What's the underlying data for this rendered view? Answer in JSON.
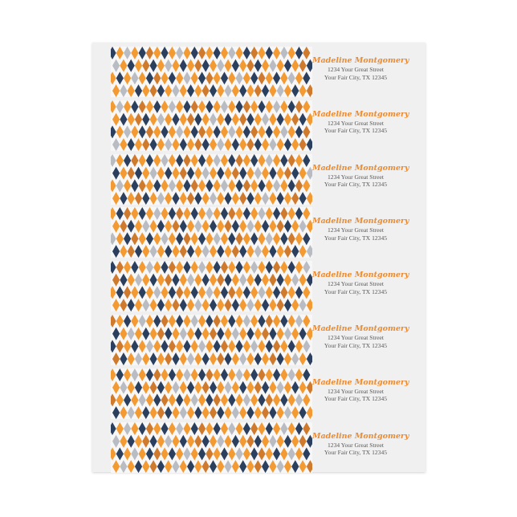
{
  "labels": [
    {
      "name": "Madeline Montgomery",
      "line1": "1234 Your Great Street",
      "line2": "Your Fair City, TX 12345"
    },
    {
      "name": "Madeline Montgomery",
      "line1": "1234 Your Great Street",
      "line2": "Your Fair City, TX 12345"
    },
    {
      "name": "Madeline Montgomery",
      "line1": "1234 Your Great Street",
      "line2": "Your Fair City, TX 12345"
    },
    {
      "name": "Madeline Montgomery",
      "line1": "1234 Your Great Street",
      "line2": "Your Fair City, TX 12345"
    },
    {
      "name": "Madeline Montgomery",
      "line1": "1234 Your Great Street",
      "line2": "Your Fair City, TX 12345"
    },
    {
      "name": "Madeline Montgomery",
      "line1": "1234 Your Great Street",
      "line2": "Your Fair City, TX 12345"
    },
    {
      "name": "Madeline Montgomery",
      "line1": "1234 Your Great Street",
      "line2": "Your Fair City, TX 12345"
    },
    {
      "name": "Madeline Montgomery",
      "line1": "1234 Your Great Street",
      "line2": "Your Fair City, TX 12345"
    }
  ],
  "colors": {
    "orange": "#f39a32",
    "dark_orange": "#cf7a2c",
    "navy": "#2b3f5e",
    "gray": "#b9bdc3",
    "name_text": "#ef8a2c"
  }
}
